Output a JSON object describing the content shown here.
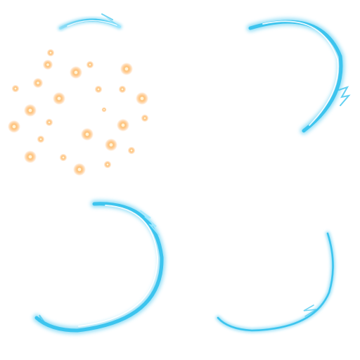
{
  "sheet": {
    "frames": [
      {
        "id": "frame-1",
        "contents": [
          "arc-stroke",
          "spark-particles"
        ]
      },
      {
        "id": "frame-2",
        "contents": [
          "arc-stroke"
        ]
      },
      {
        "id": "frame-3",
        "contents": [
          "arc-stroke"
        ]
      },
      {
        "id": "frame-4",
        "contents": [
          "arc-stroke"
        ]
      }
    ]
  },
  "colors": {
    "arc_core": "#ffffff",
    "arc_inner": "#9fe9ff",
    "arc_outer": "#3cc4ee",
    "arc_glow": "#7dd8f5",
    "spark_core": "#fff4d8",
    "spark_mid": "#ffc37a",
    "spark_glow": "#ff9c3a",
    "background": "#ffffff"
  },
  "icons": [
    "slash-arc-icon",
    "spark-particle-icon"
  ]
}
